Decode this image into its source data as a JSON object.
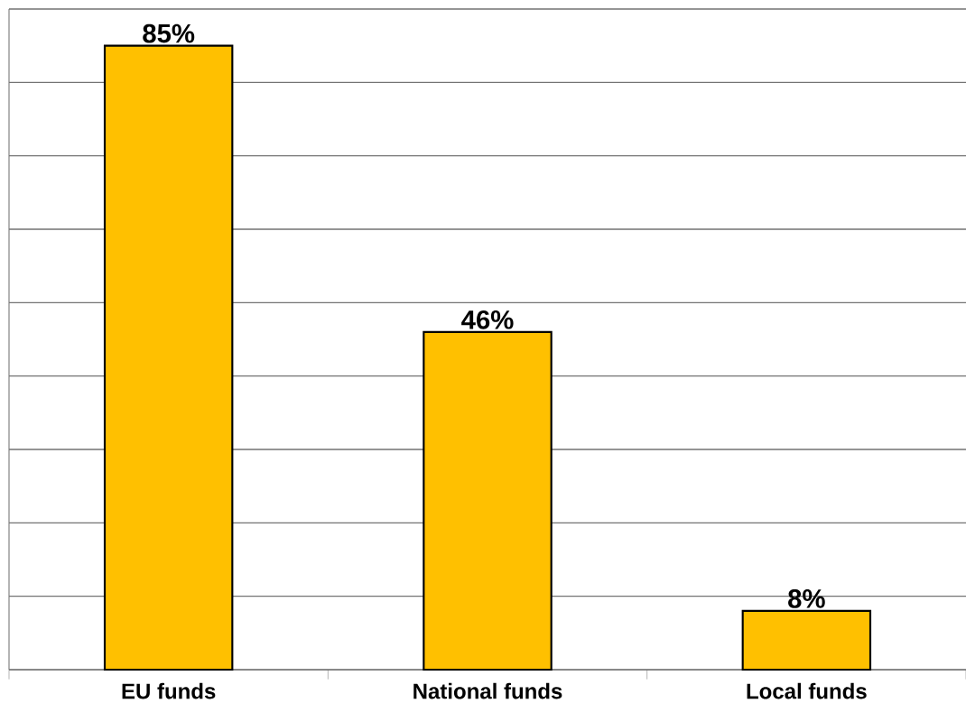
{
  "chart_data": {
    "type": "bar",
    "categories": [
      "EU funds",
      "National funds",
      "Local funds"
    ],
    "values": [
      85,
      46,
      8
    ],
    "value_labels": [
      "85%",
      "46%",
      "8%"
    ],
    "color": "#ffc000",
    "ylim": [
      0,
      90
    ],
    "yticks": [
      {
        "value": 0,
        "label": null
      },
      {
        "value": 10,
        "label": null
      },
      {
        "value": 20,
        "label": null
      },
      {
        "value": 30,
        "label": null
      },
      {
        "value": 40,
        "label": null
      },
      {
        "value": 50,
        "label": null
      },
      {
        "value": 60,
        "label": null
      },
      {
        "value": 70,
        "label": null
      },
      {
        "value": 80,
        "label": null
      },
      {
        "value": 90,
        "label": null
      }
    ],
    "grid": "y",
    "tick_labels": "x"
  }
}
